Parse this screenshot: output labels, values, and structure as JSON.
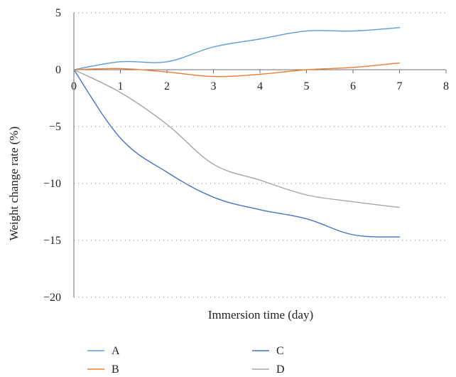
{
  "chart_data": {
    "type": "line",
    "title": "",
    "xlabel": "Immersion time (day)",
    "ylabel": "Weight change rate (%)",
    "xlim": [
      0,
      8
    ],
    "ylim": [
      -20,
      5
    ],
    "xticks": [
      0,
      1,
      2,
      3,
      4,
      5,
      6,
      7,
      8
    ],
    "yticks": [
      5,
      0,
      -5,
      -10,
      -15,
      -20
    ],
    "xtick_labels": [
      "0",
      "1",
      "2",
      "3",
      "4",
      "5",
      "6",
      "7",
      "8"
    ],
    "ytick_labels": [
      "5",
      "0",
      "−5",
      "−10",
      "−15",
      "−20"
    ],
    "grid": "horizontal dotted",
    "legend_position": "bottom",
    "x": [
      0,
      1,
      2,
      3,
      4,
      5,
      6,
      7
    ],
    "series": [
      {
        "name": "A",
        "color": "#5b9bd5",
        "values": [
          0,
          0.7,
          0.7,
          2.0,
          2.7,
          3.4,
          3.4,
          3.7
        ]
      },
      {
        "name": "B",
        "color": "#ed7d31",
        "values": [
          0,
          0.1,
          -0.2,
          -0.6,
          -0.4,
          0.0,
          0.2,
          0.6
        ]
      },
      {
        "name": "C",
        "color": "#4472c4",
        "values": [
          0,
          -6.0,
          -9.0,
          -11.2,
          -12.3,
          -13.1,
          -14.5,
          -14.7
        ]
      },
      {
        "name": "D",
        "color": "#a5a5a5",
        "values": [
          0,
          -2.0,
          -4.8,
          -8.3,
          -9.7,
          -11.0,
          -11.6,
          -12.1
        ]
      }
    ]
  }
}
